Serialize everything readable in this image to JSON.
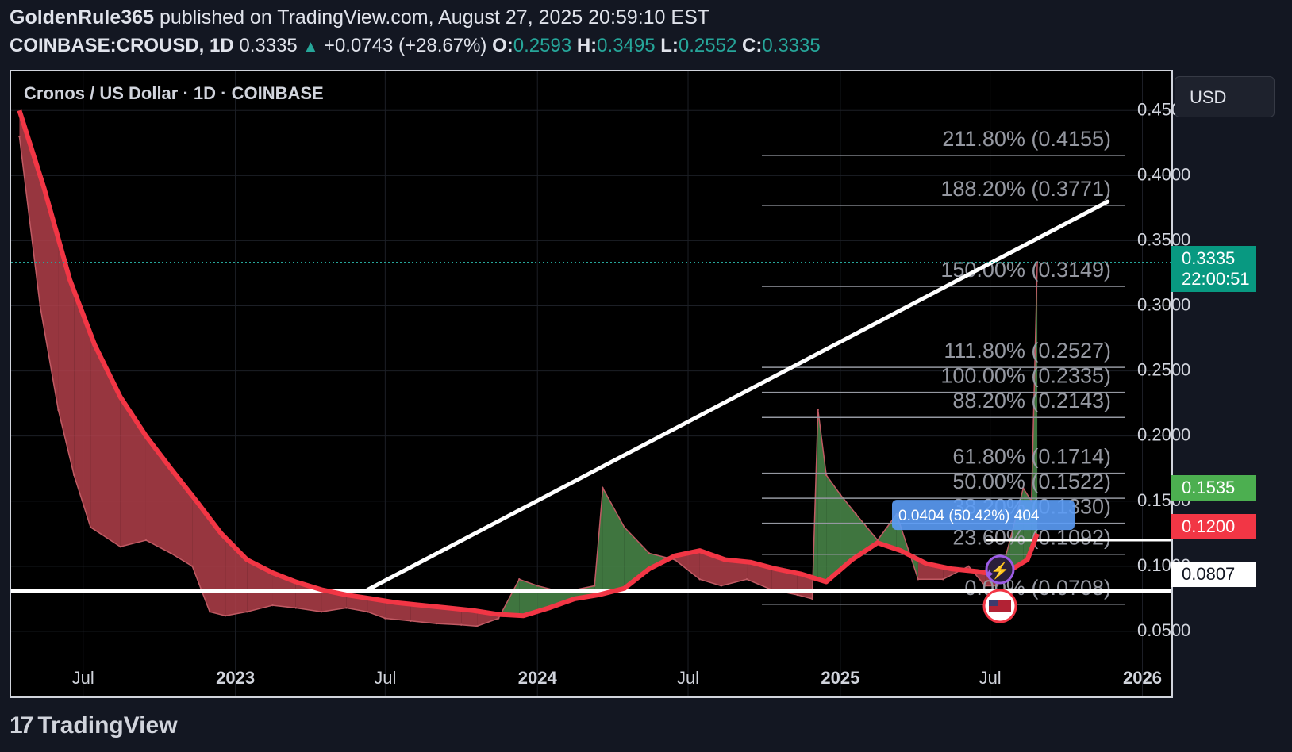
{
  "header": {
    "publisher": "GoldenRule365",
    "published_text": "published on TradingView.com, August 27, 2025 20:59:10 EST",
    "symbol": "COINBASE:CROUSD, 1D",
    "last": "0.3335",
    "change": "+0.0743 (+28.67%)",
    "o_label": "O:",
    "o_value": "0.2593",
    "h_label": "H:",
    "h_value": "0.3495",
    "l_label": "L:",
    "l_value": "0.2552",
    "c_label": "C:",
    "c_value": "0.3335"
  },
  "currency_button": "USD",
  "price_tags": {
    "current": "0.3335",
    "countdown": "22:00:51",
    "green_level": "0.1535",
    "red_level": "0.1200",
    "white_level": "0.0807"
  },
  "measure_label": "0.0404 (50.42%) 404",
  "footer": {
    "brand": "TradingView",
    "brand_icon": "tradingview-logo-icon"
  },
  "icons": {
    "lightning": "lightning-icon",
    "flag": "us-flag-icon",
    "sparkle": "sparkle-icon"
  },
  "colors": {
    "up": "#26a69a",
    "down": "#f23645",
    "ma": "#f23645",
    "fill_red": "#b2404a",
    "fill_green": "#4a8a4a",
    "trend": "#ffffff",
    "measure": "#5b9cf6",
    "fib": "#9598a1"
  },
  "chart_data": {
    "type": "line",
    "title": "Cronos / US Dollar · 1D · COINBASE",
    "xlabel": "",
    "ylabel": "",
    "x_ticks": [
      {
        "label": "Jul",
        "date": "2022-07-01"
      },
      {
        "label": "2023",
        "date": "2023-01-01"
      },
      {
        "label": "Jul",
        "date": "2023-07-01"
      },
      {
        "label": "2024",
        "date": "2024-01-01"
      },
      {
        "label": "Jul",
        "date": "2024-07-01"
      },
      {
        "label": "2025",
        "date": "2025-01-01"
      },
      {
        "label": "Jul",
        "date": "2025-07-01"
      },
      {
        "label": "2026",
        "date": "2026-01-01"
      }
    ],
    "y_ticks": [
      "0.0500",
      "0.1000",
      "0.1500",
      "0.2000",
      "0.2500",
      "0.3000",
      "0.3500",
      "0.4000",
      "0.4500"
    ],
    "y_range": [
      0.0,
      0.48
    ],
    "x_range": [
      "2022-04-05",
      "2026-02-05"
    ],
    "series": [
      {
        "x": [
          "2022-04-15",
          "2022-05-10",
          "2022-06-01",
          "2022-06-20",
          "2022-07-10",
          "2022-08-15",
          "2022-09-15",
          "2022-10-15",
          "2022-11-10",
          "2022-12-01",
          "2022-12-20",
          "2023-01-15",
          "2023-02-15",
          "2023-03-15",
          "2023-04-15",
          "2023-05-15",
          "2023-06-10",
          "2023-07-01",
          "2023-08-01",
          "2023-09-01",
          "2023-10-01",
          "2023-10-20",
          "2023-11-15",
          "2023-12-10",
          "2024-01-01",
          "2024-02-01",
          "2024-03-10",
          "2024-03-20",
          "2024-04-15",
          "2024-05-15",
          "2024-06-15",
          "2024-07-15",
          "2024-08-10",
          "2024-09-10",
          "2024-10-10",
          "2024-11-10",
          "2024-11-28",
          "2024-12-05",
          "2024-12-15",
          "2025-01-01",
          "2025-01-20",
          "2025-02-15",
          "2025-03-10",
          "2025-04-05",
          "2025-05-05",
          "2025-06-05",
          "2025-06-25",
          "2025-07-10",
          "2025-07-25",
          "2025-08-10",
          "2025-08-20",
          "2025-08-27"
        ],
        "y": [
          0.43,
          0.3,
          0.22,
          0.17,
          0.13,
          0.115,
          0.12,
          0.11,
          0.1,
          0.065,
          0.062,
          0.065,
          0.07,
          0.068,
          0.065,
          0.068,
          0.065,
          0.06,
          0.058,
          0.056,
          0.055,
          0.054,
          0.06,
          0.09,
          0.085,
          0.08,
          0.085,
          0.16,
          0.13,
          0.11,
          0.105,
          0.09,
          0.085,
          0.09,
          0.082,
          0.078,
          0.075,
          0.22,
          0.17,
          0.155,
          0.14,
          0.12,
          0.14,
          0.09,
          0.09,
          0.1,
          0.085,
          0.085,
          0.12,
          0.16,
          0.15,
          0.3335
        ]
      },
      {
        "x": [
          "2022-04-15",
          "2022-05-15",
          "2022-06-15",
          "2022-07-15",
          "2022-08-15",
          "2022-09-15",
          "2022-10-15",
          "2022-11-15",
          "2022-12-15",
          "2023-01-15",
          "2023-02-15",
          "2023-03-15",
          "2023-04-15",
          "2023-05-15",
          "2023-06-15",
          "2023-07-15",
          "2023-08-15",
          "2023-09-15",
          "2023-10-15",
          "2023-11-15",
          "2023-12-15",
          "2024-01-15",
          "2024-02-15",
          "2024-03-15",
          "2024-04-15",
          "2024-05-15",
          "2024-06-15",
          "2024-07-15",
          "2024-08-15",
          "2024-09-15",
          "2024-10-15",
          "2024-11-15",
          "2024-12-15",
          "2025-01-15",
          "2025-02-15",
          "2025-03-15",
          "2025-04-15",
          "2025-05-15",
          "2025-06-15",
          "2025-07-15",
          "2025-08-15",
          "2025-08-27"
        ],
        "y": [
          0.45,
          0.39,
          0.32,
          0.27,
          0.23,
          0.2,
          0.175,
          0.15,
          0.125,
          0.105,
          0.095,
          0.088,
          0.082,
          0.078,
          0.075,
          0.072,
          0.07,
          0.068,
          0.066,
          0.063,
          0.062,
          0.068,
          0.075,
          0.078,
          0.083,
          0.098,
          0.108,
          0.112,
          0.105,
          0.103,
          0.098,
          0.094,
          0.088,
          0.105,
          0.118,
          0.112,
          0.102,
          0.098,
          0.096,
          0.093,
          0.105,
          0.125
        ]
      }
    ],
    "fibonacci": [
      {
        "label": "211.80% (0.4155)",
        "value": 0.4155
      },
      {
        "label": "188.20% (0.3771)",
        "value": 0.3771
      },
      {
        "label": "150.00% (0.3149)",
        "value": 0.3149
      },
      {
        "label": "111.80% (0.2527)",
        "value": 0.2527
      },
      {
        "label": "100.00% (0.2335)",
        "value": 0.2335
      },
      {
        "label": "88.20% (0.2143)",
        "value": 0.2143
      },
      {
        "label": "61.80% (0.1714)",
        "value": 0.1714
      },
      {
        "label": "50.00% (0.1522)",
        "value": 0.1522
      },
      {
        "label": "38.20% (0.1330)",
        "value": 0.133
      },
      {
        "label": "23.60% (0.1092)",
        "value": 0.1092
      },
      {
        "label": "0.00% (0.0708)",
        "value": 0.0708
      }
    ],
    "horizontal_lines": [
      {
        "value": 0.0807
      },
      {
        "value": 0.12
      }
    ],
    "trendline": {
      "x": [
        "2023-06-10",
        "2025-11-20"
      ],
      "y": [
        0.082,
        0.38
      ]
    },
    "current_price": 0.3335
  }
}
